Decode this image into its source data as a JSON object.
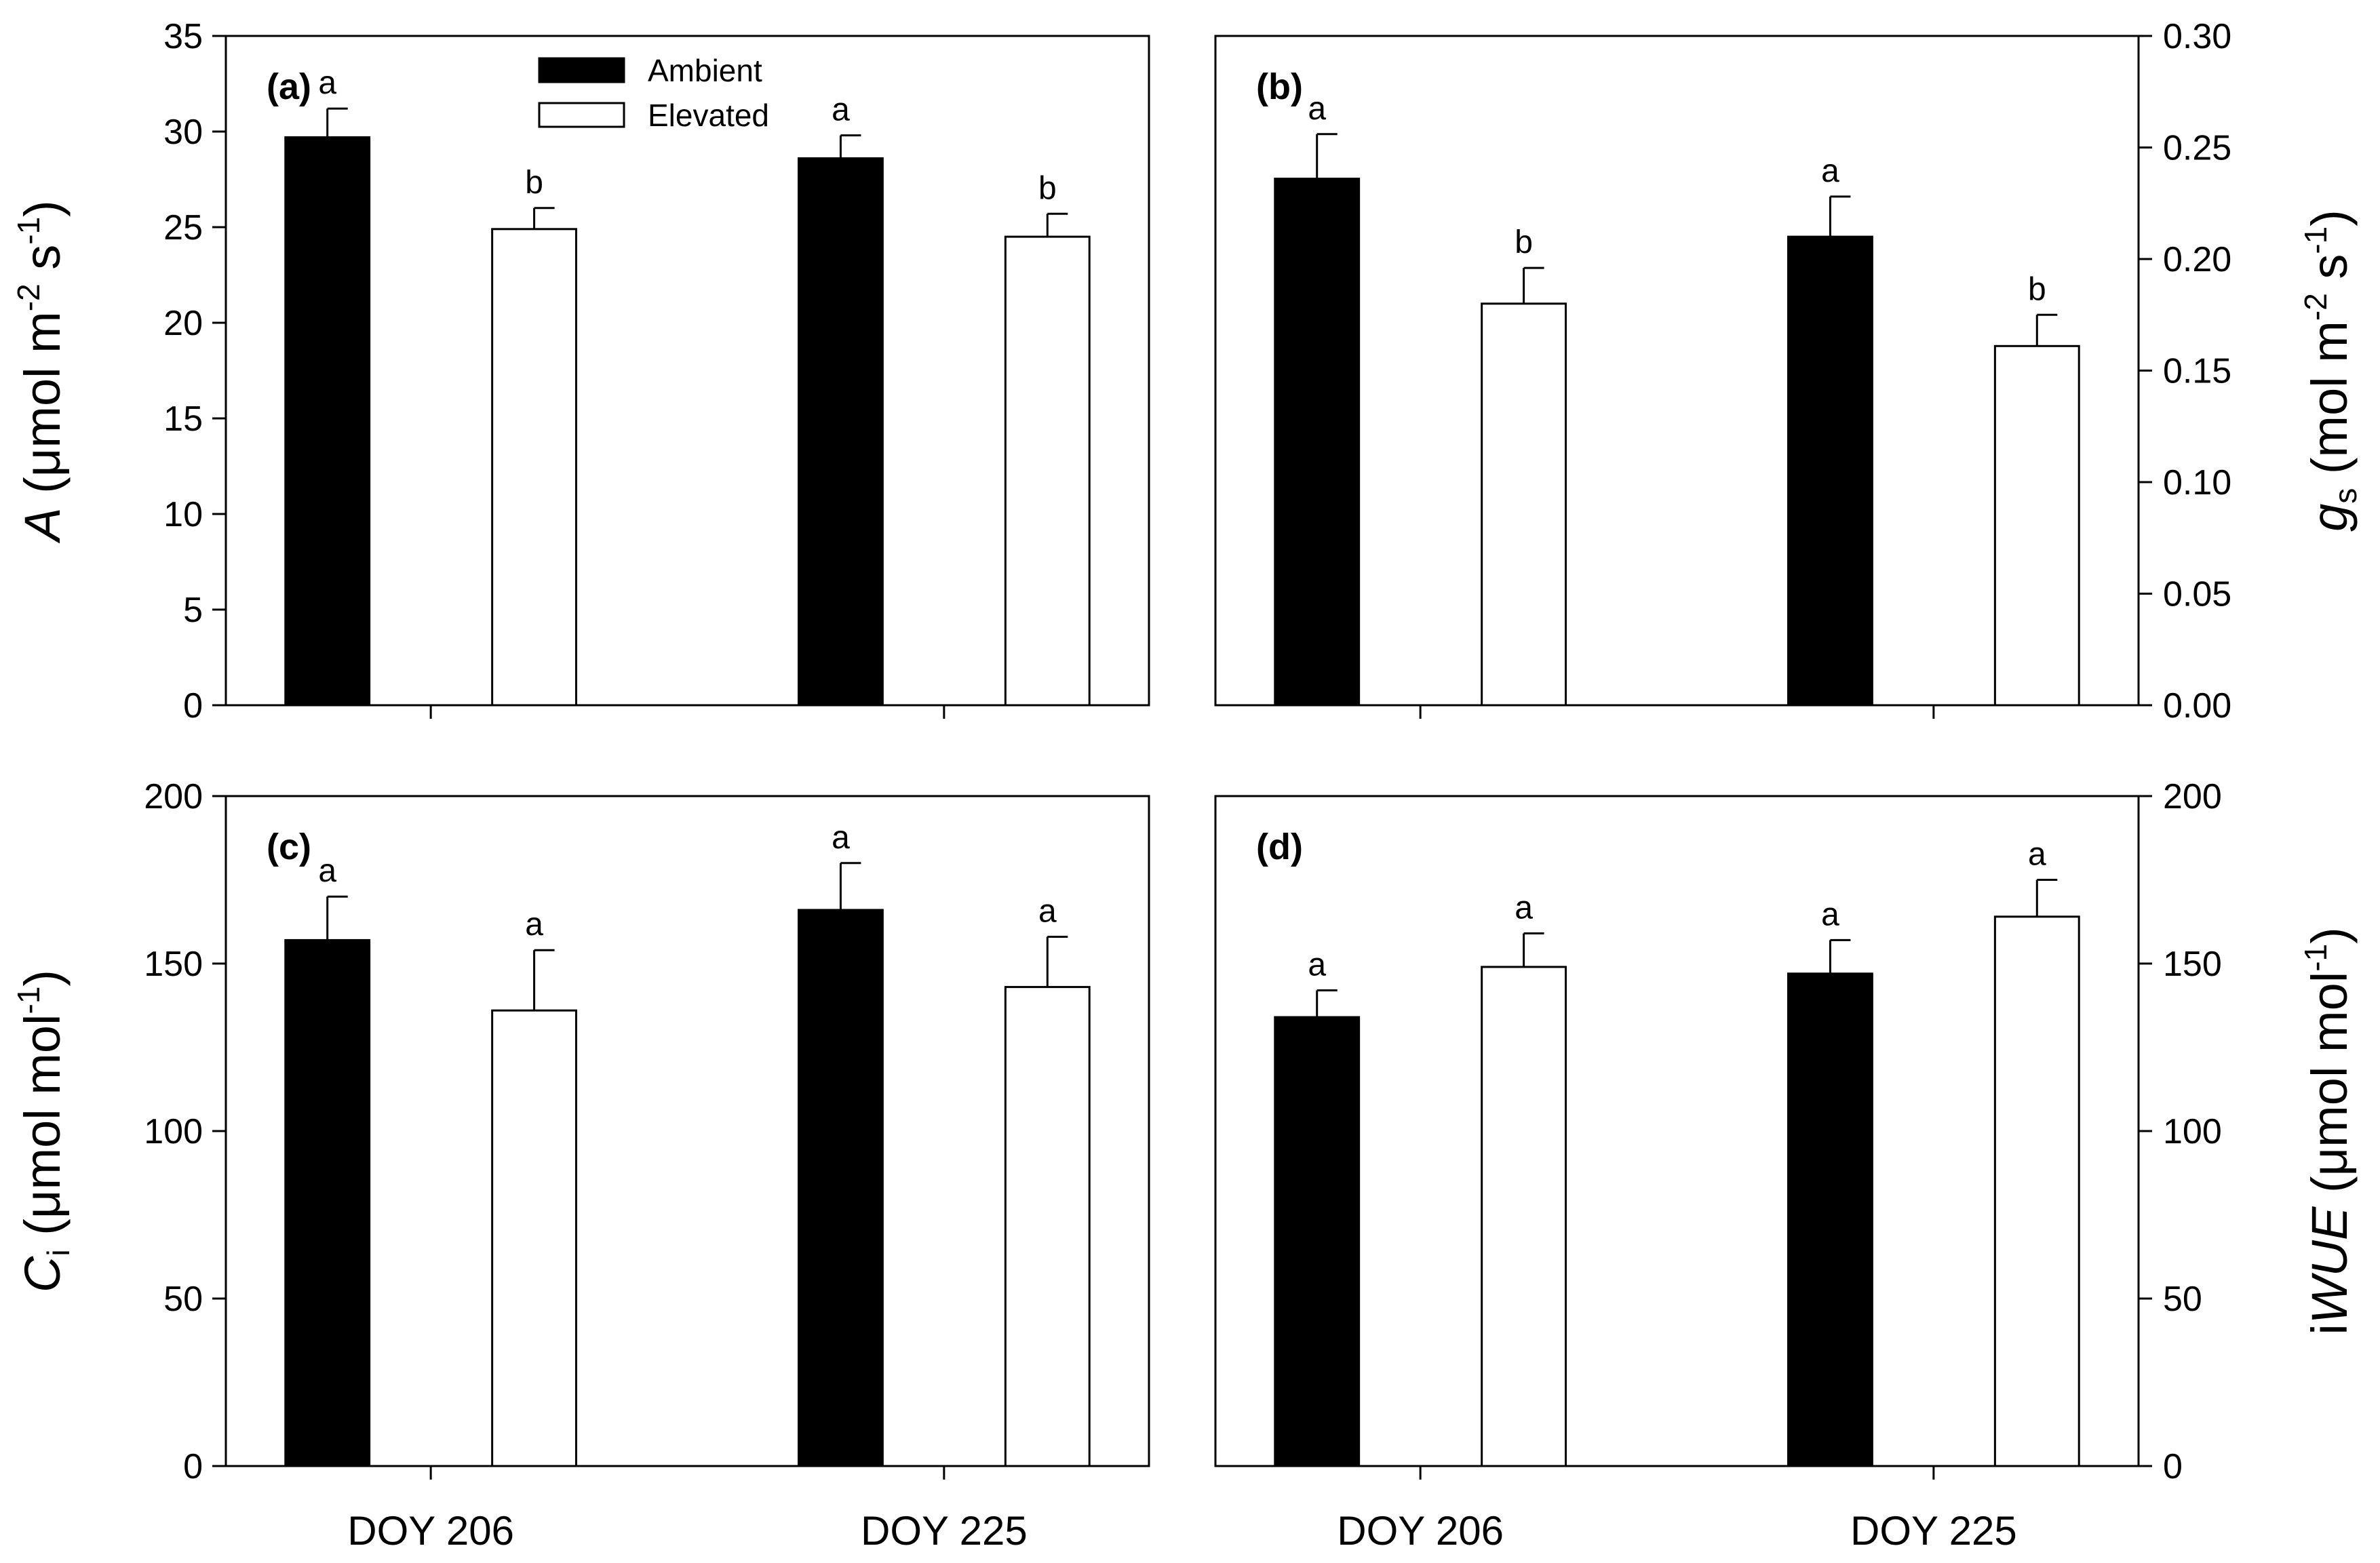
{
  "chart_data": {
    "type": "bar",
    "categories": [
      "DOY 206",
      "DOY 225"
    ],
    "legend": {
      "position": "top",
      "entries": [
        {
          "name": "Ambient",
          "fill": "#000000"
        },
        {
          "name": "Elevated",
          "fill": "#ffffff"
        }
      ]
    },
    "panels": [
      {
        "label": "(a)",
        "y_axis_side": "left",
        "ylabel": {
          "italic": "A",
          "pre": " (μmol m",
          "sup1": "-2",
          "mid": " s",
          "sup2": "-1",
          "post": ")"
        },
        "ylim": [
          0,
          35
        ],
        "yticks": [
          "0",
          "5",
          "10",
          "15",
          "20",
          "25",
          "30",
          "35"
        ],
        "series": [
          {
            "name": "Ambient",
            "values": [
              29.7,
              28.6
            ],
            "errors": [
              1.5,
              1.2
            ],
            "letters": [
              "a",
              "a"
            ]
          },
          {
            "name": "Elevated",
            "values": [
              24.9,
              24.5
            ],
            "errors": [
              1.1,
              1.2
            ],
            "letters": [
              "b",
              "b"
            ]
          }
        ]
      },
      {
        "label": "(b)",
        "y_axis_side": "right",
        "ylabel": {
          "italic": "g",
          "sub": "s",
          "pre": " (mol m",
          "sup1": "-2",
          "mid": " s",
          "sup2": "-1",
          "post": ")"
        },
        "ylim": [
          0,
          0.3
        ],
        "yticks": [
          "0.00",
          "0.05",
          "0.10",
          "0.15",
          "0.20",
          "0.25",
          "0.30"
        ],
        "series": [
          {
            "name": "Ambient",
            "values": [
              0.236,
              0.21
            ],
            "errors": [
              0.02,
              0.018
            ],
            "letters": [
              "a",
              "a"
            ]
          },
          {
            "name": "Elevated",
            "values": [
              0.18,
              0.161
            ],
            "errors": [
              0.016,
              0.014
            ],
            "letters": [
              "b",
              "b"
            ]
          }
        ]
      },
      {
        "label": "(c)",
        "y_axis_side": "left",
        "ylabel": {
          "italic": "C",
          "sub": "i",
          "pre": " (μmol mol",
          "sup1": "-1",
          "post": ")"
        },
        "ylim": [
          0,
          200
        ],
        "yticks": [
          "0",
          "50",
          "100",
          "150",
          "200"
        ],
        "series": [
          {
            "name": "Ambient",
            "values": [
              157,
              166
            ],
            "errors": [
              13,
              14
            ],
            "letters": [
              "a",
              "a"
            ]
          },
          {
            "name": "Elevated",
            "values": [
              136,
              143
            ],
            "errors": [
              18,
              15
            ],
            "letters": [
              "a",
              "a"
            ]
          }
        ]
      },
      {
        "label": "(d)",
        "y_axis_side": "right",
        "ylabel": {
          "plain": "i",
          "italic": "WUE",
          "pre": " (μmol mol",
          "sup1": "-1",
          "post": ")"
        },
        "ylim": [
          0,
          200
        ],
        "yticks": [
          "0",
          "50",
          "100",
          "150",
          "200"
        ],
        "series": [
          {
            "name": "Ambient",
            "values": [
              134,
              147
            ],
            "errors": [
              8,
              10
            ],
            "letters": [
              "a",
              "a"
            ]
          },
          {
            "name": "Elevated",
            "values": [
              149,
              164
            ],
            "errors": [
              10,
              11
            ],
            "letters": [
              "a",
              "a"
            ]
          }
        ]
      }
    ]
  }
}
